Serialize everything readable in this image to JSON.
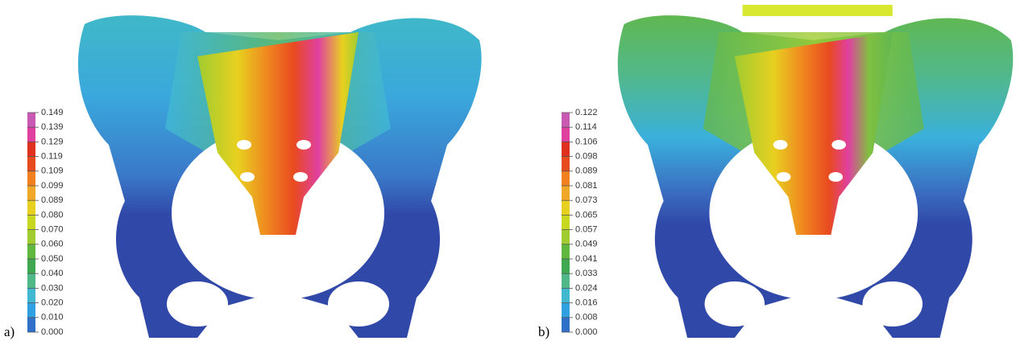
{
  "panels": [
    {
      "label": "a)",
      "scale": [
        "0.149",
        "0.139",
        "0.129",
        "0.119",
        "0.109",
        "0.099",
        "0.089",
        "0.080",
        "0.070",
        "0.060",
        "0.050",
        "0.040",
        "0.030",
        "0.020",
        "0.010",
        "0.000"
      ]
    },
    {
      "label": "b)",
      "scale": [
        "0.122",
        "0.114",
        "0.106",
        "0.098",
        "0.089",
        "0.081",
        "0.073",
        "0.065",
        "0.057",
        "0.049",
        "0.041",
        "0.033",
        "0.024",
        "0.016",
        "0.008",
        "0.000"
      ]
    }
  ]
}
